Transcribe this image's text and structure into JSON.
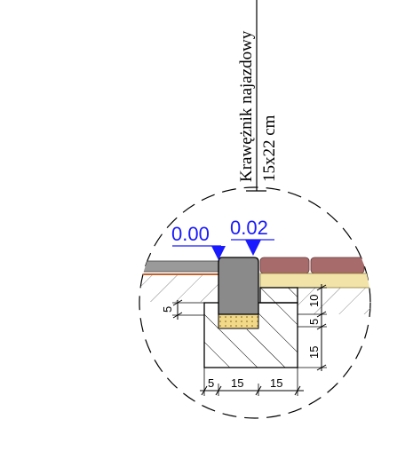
{
  "label": {
    "name": "Krawężnik najazdowy",
    "size": "15x22 cm"
  },
  "levels": {
    "left": "0.00",
    "right": "0.02"
  },
  "dimensions": {
    "vertical_left": "5",
    "vertical_right": [
      "10",
      "5",
      "15"
    ],
    "horizontal": [
      "5",
      "15",
      "15"
    ]
  },
  "colors": {
    "level_marker": "#1a1aff",
    "curb": "#8a8a8a",
    "paver": "#a86b6b",
    "asphalt": "#9a9a9a",
    "sand_bed": "#f2e3a8",
    "mortar": "#e8c24e"
  }
}
